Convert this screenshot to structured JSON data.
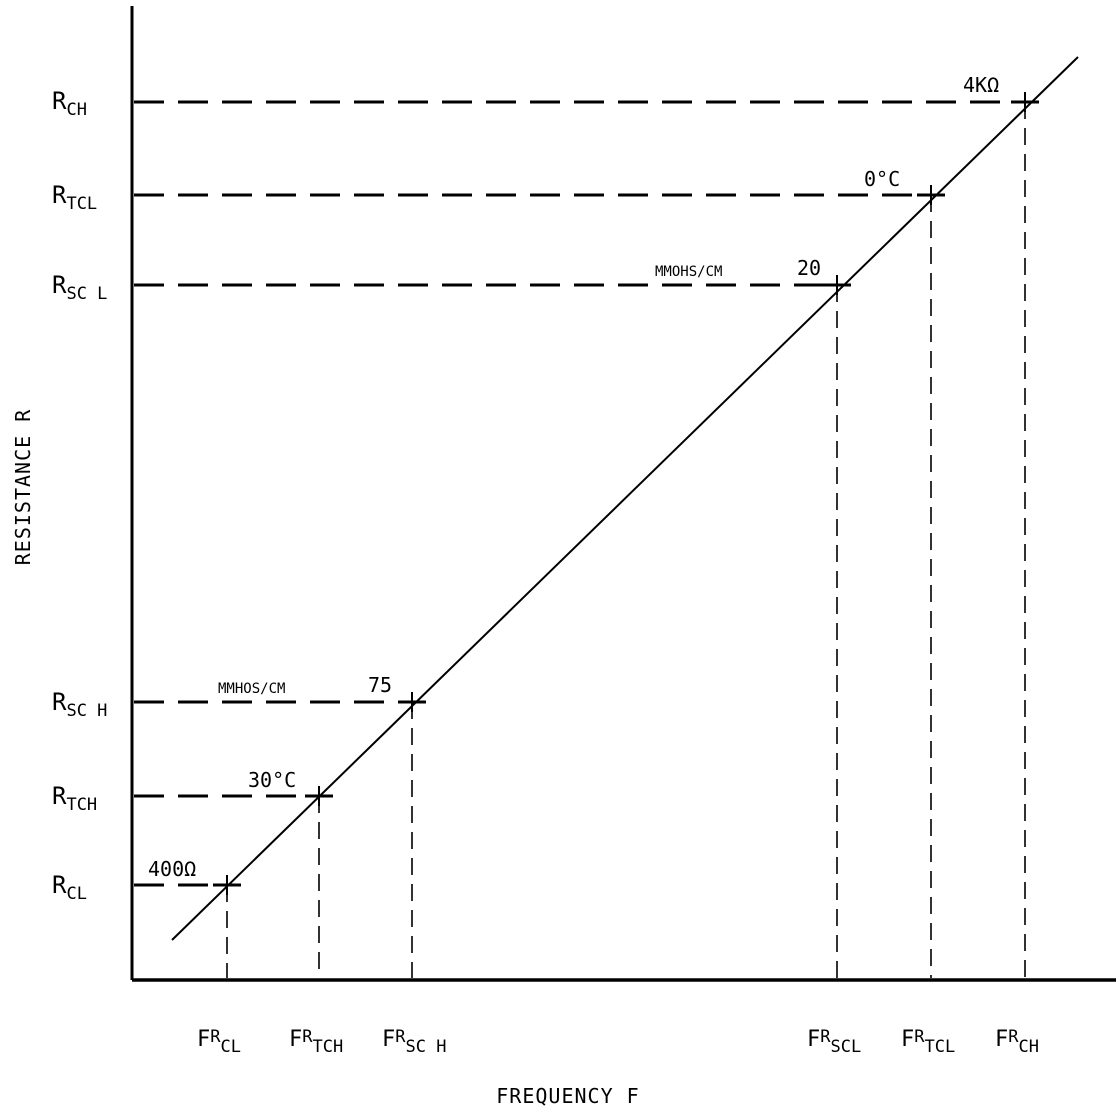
{
  "chart_data": {
    "type": "line",
    "title": "",
    "xlabel": "FREQUENCY F",
    "ylabel": "RESISTANCE R",
    "grid": false,
    "legend": "none",
    "x_ticks": [
      {
        "main": "F",
        "sub": "R",
        "suffix": "CL"
      },
      {
        "main": "F",
        "sub": "R",
        "suffix": "TCH"
      },
      {
        "main": "F",
        "sub": "R",
        "suffix": "SC H"
      },
      {
        "main": "F",
        "sub": "R",
        "suffix": "SCL"
      },
      {
        "main": "F",
        "sub": "R",
        "suffix": "TCL"
      },
      {
        "main": "F",
        "sub": "R",
        "suffix": "CH"
      }
    ],
    "y_ticks": [
      {
        "main": "R",
        "sub": "CH"
      },
      {
        "main": "R",
        "sub": "TCL"
      },
      {
        "main": "R",
        "sub": "SC L"
      },
      {
        "main": "R",
        "sub": "SC H"
      },
      {
        "main": "R",
        "sub": "TCH"
      },
      {
        "main": "R",
        "sub": "CL"
      }
    ],
    "points": [
      {
        "x": "FRCL",
        "y": "RCL",
        "label": "400Ω"
      },
      {
        "x": "FRTCH",
        "y": "RTCH",
        "label": "30°C"
      },
      {
        "x": "FRSCH",
        "y": "RSCH",
        "label": "75",
        "label_extra": "MMHOS/CM"
      },
      {
        "x": "FRSCL",
        "y": "RSCL",
        "label": "20",
        "label_extra": "MMOHS/CM"
      },
      {
        "x": "FRTCL",
        "y": "RTCL",
        "label": "0°C"
      },
      {
        "x": "FRCH",
        "y": "RCH",
        "label": "4KΩ"
      }
    ]
  }
}
